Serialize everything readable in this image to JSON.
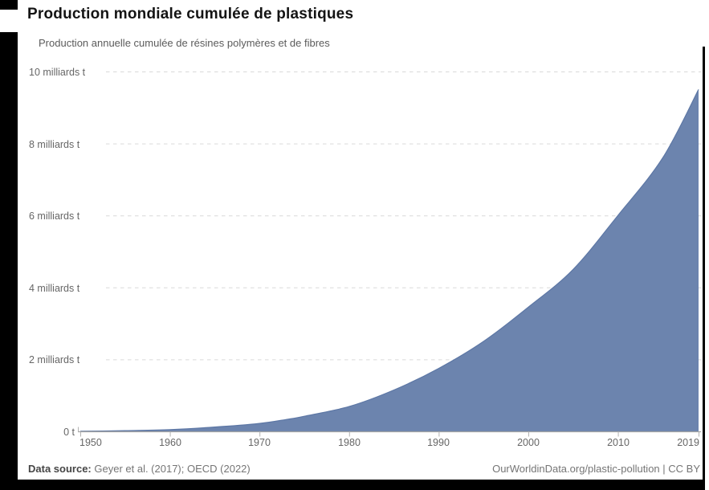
{
  "header": {
    "title": "Production mondiale cumulée de plastiques",
    "subtitle": "Production annuelle cumulée de résines polymères et de fibres"
  },
  "chart_data": {
    "type": "area",
    "title": "Production mondiale cumulée de plastiques",
    "series_name": "Production cumulée de plastiques",
    "unit": "milliards de tonnes",
    "x": [
      1950,
      1955,
      1960,
      1965,
      1970,
      1973,
      1975,
      1980,
      1985,
      1990,
      1995,
      2000,
      2005,
      2010,
      2015,
      2019
    ],
    "values": [
      0.002,
      0.02,
      0.05,
      0.12,
      0.22,
      0.33,
      0.42,
      0.69,
      1.15,
      1.75,
      2.5,
      3.45,
      4.5,
      6.0,
      7.6,
      9.5
    ],
    "xlim": [
      1950,
      2019
    ],
    "ylim": [
      0,
      10
    ],
    "grid": "horizontal-dashed",
    "legend": "none",
    "yticks": [
      {
        "value": 0,
        "label": "0 t"
      },
      {
        "value": 2,
        "label": "2 milliards t"
      },
      {
        "value": 4,
        "label": "4 milliards t"
      },
      {
        "value": 6,
        "label": "6 milliards t"
      },
      {
        "value": 8,
        "label": "8 milliards t"
      },
      {
        "value": 10,
        "label": "10 milliards t"
      }
    ],
    "xticks": [
      {
        "value": 1950,
        "label": "1950"
      },
      {
        "value": 1960,
        "label": "1960"
      },
      {
        "value": 1970,
        "label": "1970"
      },
      {
        "value": 1980,
        "label": "1980"
      },
      {
        "value": 1990,
        "label": "1990"
      },
      {
        "value": 2000,
        "label": "2000"
      },
      {
        "value": 2010,
        "label": "2010"
      },
      {
        "value": 2019,
        "label": "2019"
      }
    ]
  },
  "colors": {
    "area": "#6c84ae",
    "area_edge": "#5d77a5",
    "grid": "#d9d9d9",
    "axis": "#a3a3a3",
    "tick": "#b3b3b3",
    "text_muted": "#666666",
    "frame": "#000000"
  },
  "footer": {
    "source_label": "Data source:",
    "source_text": "Geyer et al. (2017); OECD (2022)",
    "attribution": "OurWorldinData.org/plastic-pollution | CC BY"
  }
}
